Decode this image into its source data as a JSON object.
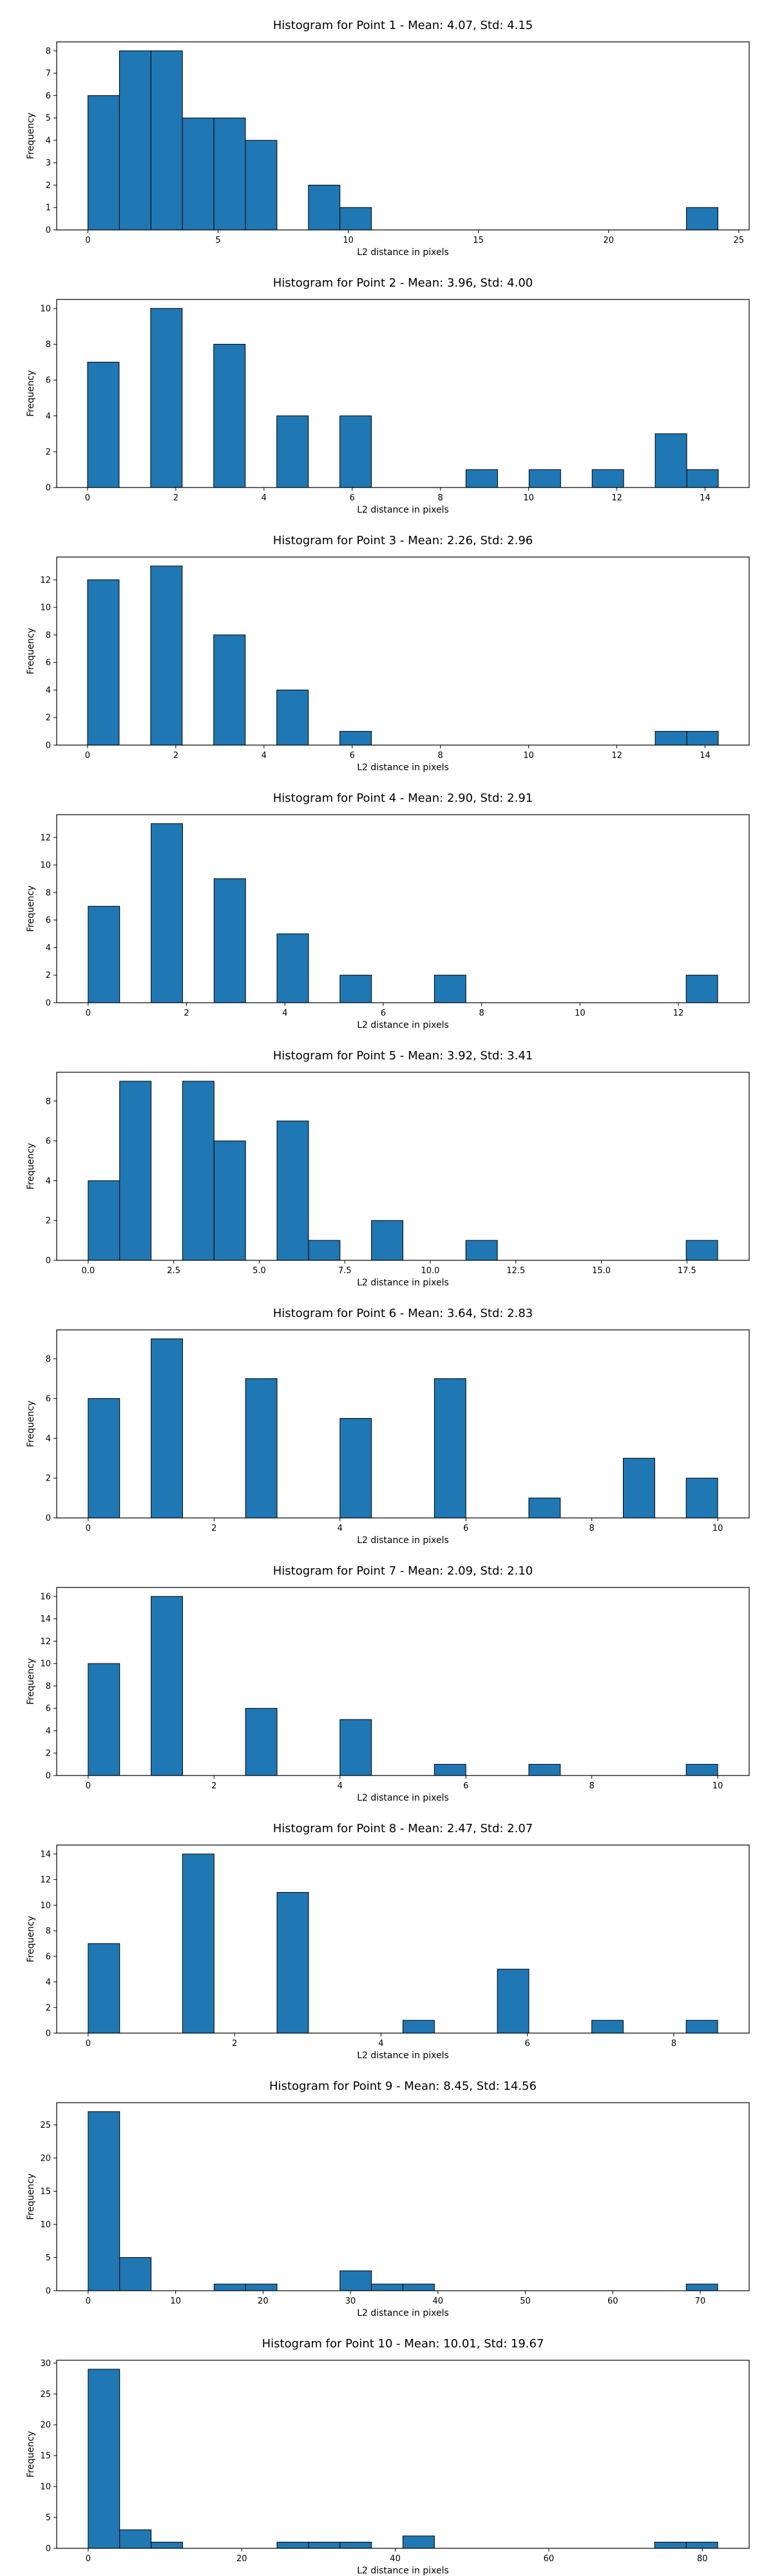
{
  "chart_data": [
    {
      "type": "bar",
      "title": "Histogram for Point 1 - Mean: 4.07, Std: 4.15",
      "xlabel": "L2 distance in pixels",
      "ylabel": "Frequency",
      "bin_range": [
        0.0,
        24.2
      ],
      "bins": 20,
      "counts": [
        6,
        8,
        8,
        5,
        5,
        4,
        0,
        2,
        1,
        0,
        0,
        0,
        0,
        0,
        0,
        0,
        0,
        0,
        0,
        1
      ],
      "xlim": [
        -1.2,
        25.4
      ],
      "ylim": [
        0,
        8.4
      ],
      "xticks": [
        0,
        5,
        10,
        15,
        20,
        25
      ],
      "xtick_labels": [
        "0",
        "5",
        "10",
        "15",
        "20",
        "25"
      ],
      "yticks": [
        0,
        1,
        2,
        3,
        4,
        5,
        6,
        7,
        8
      ],
      "ytick_labels": [
        "0",
        "1",
        "2",
        "3",
        "4",
        "5",
        "6",
        "7",
        "8"
      ]
    },
    {
      "type": "bar",
      "title": "Histogram for Point 2 - Mean: 3.96, Std: 4.00",
      "xlabel": "L2 distance in pixels",
      "ylabel": "Frequency",
      "bin_range": [
        0.0,
        14.3
      ],
      "bins": 20,
      "counts": [
        7,
        0,
        10,
        0,
        8,
        0,
        4,
        0,
        4,
        0,
        0,
        0,
        1,
        0,
        1,
        0,
        1,
        0,
        3,
        1
      ],
      "xlim": [
        -0.7,
        15.0
      ],
      "ylim": [
        0,
        10.5
      ],
      "xticks": [
        0,
        2,
        4,
        6,
        8,
        10,
        12,
        14
      ],
      "xtick_labels": [
        "0",
        "2",
        "4",
        "6",
        "8",
        "10",
        "12",
        "14"
      ],
      "yticks": [
        0,
        2,
        4,
        6,
        8,
        10
      ],
      "ytick_labels": [
        "0",
        "2",
        "4",
        "6",
        "8",
        "10"
      ]
    },
    {
      "type": "bar",
      "title": "Histogram for Point 3 - Mean: 2.26, Std: 2.96",
      "xlabel": "L2 distance in pixels",
      "ylabel": "Frequency",
      "bin_range": [
        0.0,
        14.3
      ],
      "bins": 20,
      "counts": [
        12,
        0,
        13,
        0,
        8,
        0,
        4,
        0,
        1,
        0,
        0,
        0,
        0,
        0,
        0,
        0,
        0,
        0,
        1,
        1
      ],
      "xlim": [
        -0.7,
        15.0
      ],
      "ylim": [
        0,
        13.65
      ],
      "xticks": [
        0,
        2,
        4,
        6,
        8,
        10,
        12,
        14
      ],
      "xtick_labels": [
        "0",
        "2",
        "4",
        "6",
        "8",
        "10",
        "12",
        "14"
      ],
      "yticks": [
        0,
        2,
        4,
        6,
        8,
        10,
        12
      ],
      "ytick_labels": [
        "0",
        "2",
        "4",
        "6",
        "8",
        "10",
        "12"
      ]
    },
    {
      "type": "bar",
      "title": "Histogram for Point 4 - Mean: 2.90, Std: 2.91",
      "xlabel": "L2 distance in pixels",
      "ylabel": "Frequency",
      "bin_range": [
        0.0,
        12.8
      ],
      "bins": 20,
      "counts": [
        7,
        0,
        13,
        0,
        9,
        0,
        5,
        0,
        2,
        0,
        0,
        2,
        0,
        0,
        0,
        0,
        0,
        0,
        0,
        2
      ],
      "xlim": [
        -0.64,
        13.44
      ],
      "ylim": [
        0,
        13.65
      ],
      "xticks": [
        0,
        2,
        4,
        6,
        8,
        10,
        12
      ],
      "xtick_labels": [
        "0",
        "2",
        "4",
        "6",
        "8",
        "10",
        "12"
      ],
      "yticks": [
        0,
        2,
        4,
        6,
        8,
        10,
        12
      ],
      "ytick_labels": [
        "0",
        "2",
        "4",
        "6",
        "8",
        "10",
        "12"
      ]
    },
    {
      "type": "bar",
      "title": "Histogram for Point 5 - Mean: 3.92, Std: 3.41",
      "xlabel": "L2 distance in pixels",
      "ylabel": "Frequency",
      "bin_range": [
        0.0,
        18.4
      ],
      "bins": 20,
      "counts": [
        4,
        9,
        0,
        9,
        6,
        0,
        7,
        1,
        0,
        2,
        0,
        0,
        1,
        0,
        0,
        0,
        0,
        0,
        0,
        1
      ],
      "xlim": [
        -0.92,
        19.32
      ],
      "ylim": [
        0,
        9.45
      ],
      "xticks": [
        0.0,
        2.5,
        5.0,
        7.5,
        10.0,
        12.5,
        15.0,
        17.5
      ],
      "xtick_labels": [
        "0.0",
        "2.5",
        "5.0",
        "7.5",
        "10.0",
        "12.5",
        "15.0",
        "17.5"
      ],
      "yticks": [
        0,
        2,
        4,
        6,
        8
      ],
      "ytick_labels": [
        "0",
        "2",
        "4",
        "6",
        "8"
      ]
    },
    {
      "type": "bar",
      "title": "Histogram for Point 6 - Mean: 3.64, Std: 2.83",
      "xlabel": "L2 distance in pixels",
      "ylabel": "Frequency",
      "bin_range": [
        0.0,
        10.0
      ],
      "bins": 20,
      "counts": [
        6,
        0,
        9,
        0,
        0,
        7,
        0,
        0,
        5,
        0,
        0,
        7,
        0,
        0,
        1,
        0,
        0,
        3,
        0,
        2
      ],
      "xlim": [
        -0.5,
        10.5
      ],
      "ylim": [
        0,
        9.45
      ],
      "xticks": [
        0,
        2,
        4,
        6,
        8,
        10
      ],
      "xtick_labels": [
        "0",
        "2",
        "4",
        "6",
        "8",
        "10"
      ],
      "yticks": [
        0,
        2,
        4,
        6,
        8
      ],
      "ytick_labels": [
        "0",
        "2",
        "4",
        "6",
        "8"
      ]
    },
    {
      "type": "bar",
      "title": "Histogram for Point 7 - Mean: 2.09, Std: 2.10",
      "xlabel": "L2 distance in pixels",
      "ylabel": "Frequency",
      "bin_range": [
        0.0,
        10.0
      ],
      "bins": 20,
      "counts": [
        10,
        0,
        16,
        0,
        0,
        6,
        0,
        0,
        5,
        0,
        0,
        1,
        0,
        0,
        1,
        0,
        0,
        0,
        0,
        1
      ],
      "xlim": [
        -0.5,
        10.5
      ],
      "ylim": [
        0,
        16.8
      ],
      "xticks": [
        0,
        2,
        4,
        6,
        8,
        10
      ],
      "xtick_labels": [
        "0",
        "2",
        "4",
        "6",
        "8",
        "10"
      ],
      "yticks": [
        0,
        2,
        4,
        6,
        8,
        10,
        12,
        14,
        16
      ],
      "ytick_labels": [
        "0",
        "2",
        "4",
        "6",
        "8",
        "10",
        "12",
        "14",
        "16"
      ]
    },
    {
      "type": "bar",
      "title": "Histogram for Point 8 - Mean: 2.47, Std: 2.07",
      "xlabel": "L2 distance in pixels",
      "ylabel": "Frequency",
      "bin_range": [
        0.0,
        8.6
      ],
      "bins": 20,
      "counts": [
        7,
        0,
        0,
        14,
        0,
        0,
        11,
        0,
        0,
        0,
        1,
        0,
        0,
        5,
        0,
        0,
        1,
        0,
        0,
        1
      ],
      "xlim": [
        -0.43,
        9.03
      ],
      "ylim": [
        0,
        14.7
      ],
      "xticks": [
        0,
        2,
        4,
        6,
        8
      ],
      "xtick_labels": [
        "0",
        "2",
        "4",
        "6",
        "8"
      ],
      "yticks": [
        0,
        2,
        4,
        6,
        8,
        10,
        12,
        14
      ],
      "ytick_labels": [
        "0",
        "2",
        "4",
        "6",
        "8",
        "10",
        "12",
        "14"
      ]
    },
    {
      "type": "bar",
      "title": "Histogram for Point 9 - Mean: 8.45, Std: 14.56",
      "xlabel": "L2 distance in pixels",
      "ylabel": "Frequency",
      "bin_range": [
        0.0,
        72.0
      ],
      "bins": 20,
      "counts": [
        27,
        5,
        0,
        0,
        1,
        1,
        0,
        0,
        3,
        1,
        1,
        0,
        0,
        0,
        0,
        0,
        0,
        0,
        0,
        1
      ],
      "xlim": [
        -3.6,
        75.6
      ],
      "ylim": [
        0,
        28.35
      ],
      "xticks": [
        0,
        10,
        20,
        30,
        40,
        50,
        60,
        70
      ],
      "xtick_labels": [
        "0",
        "10",
        "20",
        "30",
        "40",
        "50",
        "60",
        "70"
      ],
      "yticks": [
        0,
        5,
        10,
        15,
        20,
        25
      ],
      "ytick_labels": [
        "0",
        "5",
        "10",
        "15",
        "20",
        "25"
      ]
    },
    {
      "type": "bar",
      "title": "Histogram for Point 10 - Mean: 10.01, Std: 19.67",
      "xlabel": "L2 distance in pixels",
      "ylabel": "Frequency",
      "bin_range": [
        0.0,
        82.0
      ],
      "bins": 20,
      "counts": [
        29,
        3,
        1,
        0,
        0,
        0,
        1,
        1,
        1,
        0,
        2,
        0,
        0,
        0,
        0,
        0,
        0,
        0,
        1,
        1
      ],
      "xlim": [
        -4.1,
        86.1
      ],
      "ylim": [
        0,
        30.45
      ],
      "xticks": [
        0,
        20,
        40,
        60,
        80
      ],
      "xtick_labels": [
        "0",
        "20",
        "40",
        "60",
        "80"
      ],
      "yticks": [
        0,
        5,
        10,
        15,
        20,
        25,
        30
      ],
      "ytick_labels": [
        "0",
        "5",
        "10",
        "15",
        "20",
        "25",
        "30"
      ]
    }
  ],
  "colors": {
    "bar_fill": "#1f77b4",
    "bar_edge": "#000000",
    "axis": "#000000",
    "background": "#ffffff"
  }
}
